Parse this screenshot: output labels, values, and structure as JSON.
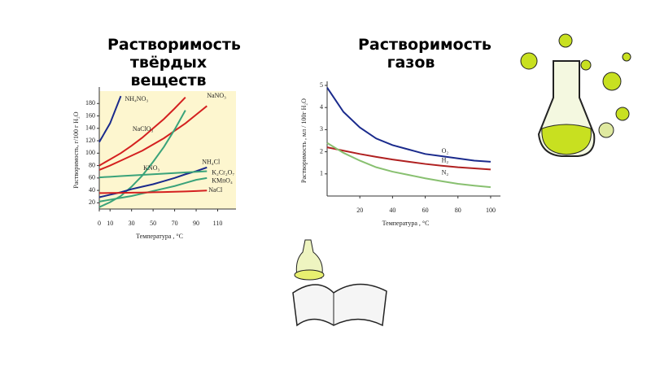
{
  "chart_data": [
    {
      "type": "line",
      "title": "Растворимость твёрдых веществ",
      "x_label": "Температура , °C",
      "y_label": "Растворимость, г/100 г H₂O",
      "x": [
        0,
        10,
        20,
        30,
        40,
        50,
        60,
        70,
        80,
        90,
        100
      ],
      "xlim": [
        0,
        127
      ],
      "ylim": [
        10,
        200
      ],
      "xticks": [
        0,
        10,
        30,
        50,
        70,
        90,
        110
      ],
      "yticks": [
        20,
        40,
        60,
        80,
        100,
        120,
        140,
        160,
        180
      ],
      "background": "#fdf6cf",
      "series": [
        {
          "name": "NH₄NO₃",
          "color": "#1a2a8c",
          "values": [
            118,
            148,
            192,
            null,
            null,
            null,
            null,
            null,
            null,
            null,
            null
          ]
        },
        {
          "name": "NaNO₃",
          "color": "#d42020",
          "values": [
            73,
            80,
            88,
            96,
            104,
            114,
            124,
            136,
            148,
            162,
            176
          ]
        },
        {
          "name": "NaClO₃",
          "color": "#d42020",
          "values": [
            80,
            90,
            100,
            112,
            125,
            140,
            155,
            172,
            190,
            null,
            null
          ]
        },
        {
          "name": "KNO₃",
          "color": "#3aa37a",
          "values": [
            13,
            21,
            31,
            46,
            64,
            86,
            110,
            138,
            169,
            null,
            null
          ]
        },
        {
          "name": "NH₄Cl",
          "color": "#1a2a8c",
          "values": [
            29,
            33,
            37,
            42,
            46,
            50,
            55,
            60,
            66,
            71,
            77
          ]
        },
        {
          "name": "K₂Cr₂O₇",
          "color": "#3aa37a",
          "values": [
            61,
            62,
            63,
            64,
            65,
            66,
            67,
            68,
            69,
            70,
            71
          ]
        },
        {
          "name": "KMnO₄",
          "color": "#3aa37a",
          "values": [
            22,
            25,
            28,
            31,
            35,
            39,
            43,
            47,
            52,
            57,
            60
          ]
        },
        {
          "name": "NaCl",
          "color": "#d42020",
          "values": [
            35.7,
            35.8,
            36,
            36.3,
            36.6,
            37,
            37.3,
            37.8,
            38.4,
            39,
            39.8
          ]
        }
      ]
    },
    {
      "type": "line",
      "title": "Растворимость газов",
      "x_label": "Температура , °C",
      "y_label": "Растворимость , мл / 100г H₂O",
      "x": [
        0,
        10,
        20,
        30,
        40,
        50,
        60,
        70,
        80,
        90,
        100
      ],
      "xlim": [
        0,
        106
      ],
      "ylim": [
        0,
        5
      ],
      "xticks": [
        20,
        40,
        60,
        80,
        100
      ],
      "yticks": [
        1,
        2,
        3,
        4,
        5
      ],
      "background": "#ffffff",
      "series": [
        {
          "name": "O₂",
          "color": "#1a2a8c",
          "values": [
            4.9,
            3.8,
            3.1,
            2.6,
            2.3,
            2.1,
            1.9,
            1.8,
            1.7,
            1.6,
            1.55
          ]
        },
        {
          "name": "H₂",
          "color": "#b02020",
          "values": [
            2.2,
            2.05,
            1.9,
            1.77,
            1.65,
            1.55,
            1.45,
            1.37,
            1.3,
            1.25,
            1.2
          ]
        },
        {
          "name": "N₂",
          "color": "#88c070",
          "values": [
            2.4,
            1.95,
            1.6,
            1.3,
            1.1,
            0.95,
            0.8,
            0.67,
            0.55,
            0.47,
            0.4
          ]
        }
      ]
    }
  ]
}
